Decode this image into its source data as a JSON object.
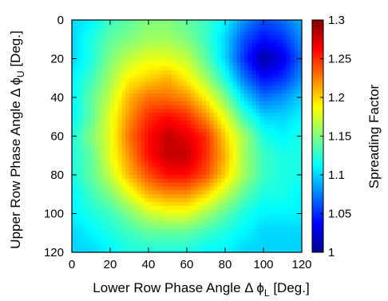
{
  "chart_data": {
    "type": "heatmap",
    "xlabel": "Lower Row Phase Angle Δ ϕ",
    "xlabel_sub": "L",
    "xlabel_unit": " [Deg.]",
    "ylabel": "Upper Row Phase Angle Δ ϕ",
    "ylabel_sub": "U",
    "ylabel_unit": " [Deg.]",
    "colorbar_label": "Spreading Factor",
    "xlim": [
      0,
      120
    ],
    "ylim": [
      0,
      120
    ],
    "y_inverted": true,
    "x_ticks": [
      "0",
      "20",
      "40",
      "60",
      "80",
      "100",
      "120"
    ],
    "y_ticks": [
      "0",
      "20",
      "40",
      "60",
      "80",
      "100",
      "120"
    ],
    "clim": [
      1.0,
      1.3
    ],
    "colorbar_ticks": [
      "1",
      "1.05",
      "1.1",
      "1.15",
      "1.2",
      "1.25",
      "1.3"
    ],
    "colormap": "jet",
    "x": [
      0,
      10,
      20,
      30,
      40,
      50,
      60,
      70,
      80,
      90,
      100,
      110,
      120
    ],
    "y": [
      0,
      10,
      20,
      30,
      40,
      50,
      60,
      70,
      80,
      90,
      100,
      110,
      120
    ],
    "values": [
      [
        1.1,
        1.11,
        1.13,
        1.14,
        1.15,
        1.15,
        1.14,
        1.13,
        1.11,
        1.08,
        1.06,
        1.07,
        1.09
      ],
      [
        1.1,
        1.12,
        1.14,
        1.15,
        1.16,
        1.16,
        1.15,
        1.13,
        1.1,
        1.06,
        1.04,
        1.05,
        1.08
      ],
      [
        1.1,
        1.12,
        1.15,
        1.17,
        1.18,
        1.18,
        1.17,
        1.14,
        1.1,
        1.05,
        1.01,
        1.03,
        1.07
      ],
      [
        1.11,
        1.13,
        1.16,
        1.19,
        1.2,
        1.21,
        1.19,
        1.16,
        1.12,
        1.07,
        1.04,
        1.05,
        1.08
      ],
      [
        1.11,
        1.14,
        1.17,
        1.21,
        1.23,
        1.23,
        1.22,
        1.19,
        1.15,
        1.1,
        1.07,
        1.08,
        1.1
      ],
      [
        1.11,
        1.14,
        1.18,
        1.22,
        1.25,
        1.26,
        1.25,
        1.22,
        1.18,
        1.13,
        1.1,
        1.1,
        1.11
      ],
      [
        1.12,
        1.15,
        1.18,
        1.23,
        1.26,
        1.28,
        1.27,
        1.25,
        1.2,
        1.16,
        1.12,
        1.11,
        1.12
      ],
      [
        1.12,
        1.14,
        1.18,
        1.22,
        1.26,
        1.28,
        1.28,
        1.25,
        1.21,
        1.16,
        1.13,
        1.12,
        1.12
      ],
      [
        1.12,
        1.14,
        1.17,
        1.21,
        1.24,
        1.26,
        1.26,
        1.24,
        1.2,
        1.16,
        1.13,
        1.12,
        1.12
      ],
      [
        1.11,
        1.13,
        1.15,
        1.18,
        1.21,
        1.22,
        1.22,
        1.2,
        1.17,
        1.14,
        1.12,
        1.12,
        1.11
      ],
      [
        1.11,
        1.12,
        1.13,
        1.15,
        1.17,
        1.18,
        1.18,
        1.16,
        1.14,
        1.12,
        1.11,
        1.11,
        1.11
      ],
      [
        1.1,
        1.11,
        1.12,
        1.13,
        1.14,
        1.14,
        1.14,
        1.13,
        1.12,
        1.11,
        1.1,
        1.1,
        1.1
      ],
      [
        1.1,
        1.1,
        1.11,
        1.12,
        1.12,
        1.12,
        1.12,
        1.11,
        1.11,
        1.1,
        1.1,
        1.1,
        1.1
      ]
    ]
  }
}
